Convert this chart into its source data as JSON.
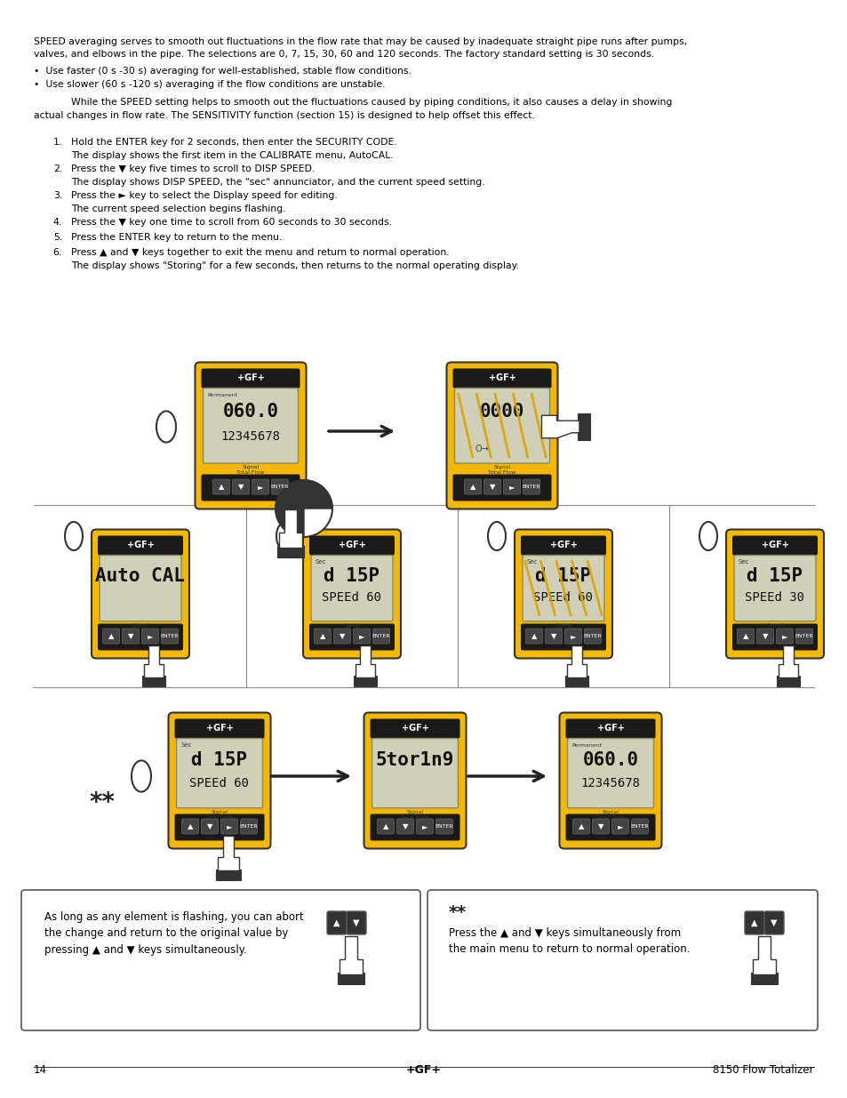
{
  "page_number": "14",
  "center_logo": "+GF+",
  "right_footer": "8150 Flow Totalizer",
  "bg_color": "#ffffff",
  "text_color": "#000000",
  "intro_line1": "SPEED averaging serves to smooth out fluctuations in the flow rate that may be caused by inadequate straight pipe runs after pumps,",
  "intro_line2": "valves, and elbows in the pipe. The selections are 0, 7, 15, 30, 60 and 120 seconds. The factory standard setting is 30 seconds.",
  "bullet1": "•  Use faster (0 s -30 s) averaging for well-established, stable flow conditions.",
  "bullet2": "•  Use slower (60 s -120 s) averaging if the flow conditions are unstable.",
  "indent_line1": "While the SPEED setting helps to smooth out the fluctuations caused by piping conditions, it also causes a delay in showing",
  "indent_line2": "actual changes in flow rate. The SENSITIVITY function (section 15) is designed to help offset this effect.",
  "steps": [
    {
      "num": "1.",
      "main": "Hold the ENTER key for 2 seconds, then enter the SECURITY CODE.",
      "sub": "The display shows the first item in the CALIBRATE menu, AutoCAL."
    },
    {
      "num": "2.",
      "main": "Press the ▼ key five times to scroll to DISP SPEED.",
      "sub": "The display shows DISP SPEED, the \"sec\" annunciator, and the current speed setting."
    },
    {
      "num": "3.",
      "main": "Press the ► key to select the Display speed for editing.",
      "sub": "The current speed selection begins flashing."
    },
    {
      "num": "4.",
      "main": "Press the ▼ key one time to scroll from 60 seconds to 30 seconds.",
      "sub": ""
    },
    {
      "num": "5.",
      "main": "Press the ENTER key to return to the menu.",
      "sub": ""
    },
    {
      "num": "6.",
      "main": "Press ▲ and ▼ keys together to exit the menu and return to normal operation.",
      "sub": "The display shows \"Storing\" for a few seconds, then returns to the normal operating display."
    }
  ],
  "note_left_text": "As long as any element is flashing, you can abort\nthe change and return to the original value by\npressing ▲ and ▼ keys simultaneously.",
  "note_right_header": "**",
  "note_right_text": "Press the ▲ and ▼ keys simultaneously from\nthe main menu to return to normal operation.",
  "device_yellow": "#F5B800",
  "device_dark": "#1a1a1a",
  "device_screen_bg": "#D0D0B8",
  "device_screen_border": "#888866"
}
